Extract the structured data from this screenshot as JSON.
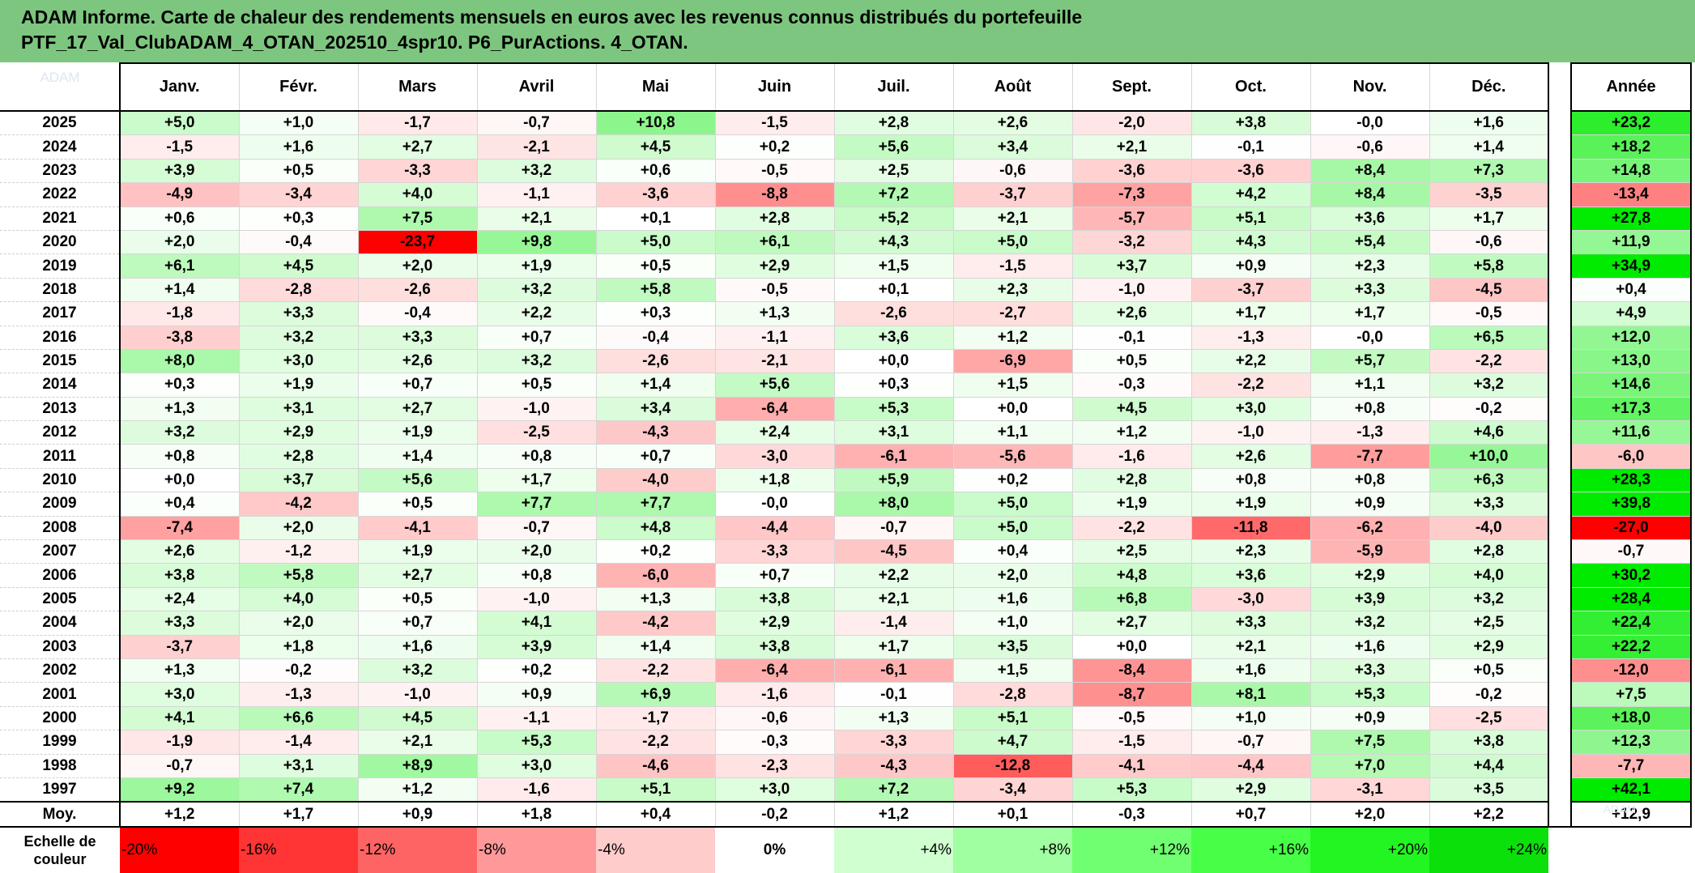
{
  "title_line1": "ADAM Informe. Carte de chaleur des rendements mensuels en euros avec les revenus connus distribués du portefeuille",
  "title_line2": "PTF_17_Val_ClubADAM_4_OTAN_202510_4spr10. P6_PurActions. 4_OTAN.",
  "colors": {
    "title_bg": "#7dc67f",
    "negative_max": "#ff0000",
    "positive_max": "#00ee00",
    "neutral": "#ffffff"
  },
  "chart_data": {
    "type": "heatmap",
    "columns": [
      "Janv.",
      "Févr.",
      "Mars",
      "Avril",
      "Mai",
      "Juin",
      "Juil.",
      "Août",
      "Sept.",
      "Oct.",
      "Nov.",
      "Déc."
    ],
    "year_column": "Année",
    "rows": [
      {
        "year": "2025",
        "values": [
          "+5,0",
          "+1,0",
          "-1,7",
          "-0,7",
          "+10,8",
          "-1,5",
          "+2,8",
          "+2,6",
          "-2,0",
          "+3,8",
          "-0,0",
          "+1,6"
        ],
        "annual": "+23,2"
      },
      {
        "year": "2024",
        "values": [
          "-1,5",
          "+1,6",
          "+2,7",
          "-2,1",
          "+4,5",
          "+0,2",
          "+5,6",
          "+3,4",
          "+2,1",
          "-0,1",
          "-0,6",
          "+1,4"
        ],
        "annual": "+18,2"
      },
      {
        "year": "2023",
        "values": [
          "+3,9",
          "+0,5",
          "-3,3",
          "+3,2",
          "+0,6",
          "-0,5",
          "+2,5",
          "-0,6",
          "-3,6",
          "-3,6",
          "+8,4",
          "+7,3"
        ],
        "annual": "+14,8"
      },
      {
        "year": "2022",
        "values": [
          "-4,9",
          "-3,4",
          "+4,0",
          "-1,1",
          "-3,6",
          "-8,8",
          "+7,2",
          "-3,7",
          "-7,3",
          "+4,2",
          "+8,4",
          "-3,5"
        ],
        "annual": "-13,4"
      },
      {
        "year": "2021",
        "values": [
          "+0,6",
          "+0,3",
          "+7,5",
          "+2,1",
          "+0,1",
          "+2,8",
          "+5,2",
          "+2,1",
          "-5,7",
          "+5,1",
          "+3,6",
          "+1,7"
        ],
        "annual": "+27,8"
      },
      {
        "year": "2020",
        "values": [
          "+2,0",
          "-0,4",
          "-23,7",
          "+9,8",
          "+5,0",
          "+6,1",
          "+4,3",
          "+5,0",
          "-3,2",
          "+4,3",
          "+5,4",
          "-0,6"
        ],
        "annual": "+11,9"
      },
      {
        "year": "2019",
        "values": [
          "+6,1",
          "+4,5",
          "+2,0",
          "+1,9",
          "+0,5",
          "+2,9",
          "+1,5",
          "-1,5",
          "+3,7",
          "+0,9",
          "+2,3",
          "+5,8"
        ],
        "annual": "+34,9"
      },
      {
        "year": "2018",
        "values": [
          "+1,4",
          "-2,8",
          "-2,6",
          "+3,2",
          "+5,8",
          "-0,5",
          "+0,1",
          "+2,3",
          "-1,0",
          "-3,7",
          "+3,3",
          "-4,5"
        ],
        "annual": "+0,4"
      },
      {
        "year": "2017",
        "values": [
          "-1,8",
          "+3,3",
          "-0,4",
          "+2,2",
          "+0,3",
          "+1,3",
          "-2,6",
          "-2,7",
          "+2,6",
          "+1,7",
          "+1,7",
          "-0,5"
        ],
        "annual": "+4,9"
      },
      {
        "year": "2016",
        "values": [
          "-3,8",
          "+3,2",
          "+3,3",
          "+0,7",
          "-0,4",
          "-1,1",
          "+3,6",
          "+1,2",
          "-0,1",
          "-1,3",
          "-0,0",
          "+6,5"
        ],
        "annual": "+12,0"
      },
      {
        "year": "2015",
        "values": [
          "+8,0",
          "+3,0",
          "+2,6",
          "+3,2",
          "-2,6",
          "-2,1",
          "+0,0",
          "-6,9",
          "+0,5",
          "+2,2",
          "+5,7",
          "-2,2"
        ],
        "annual": "+13,0"
      },
      {
        "year": "2014",
        "values": [
          "+0,3",
          "+1,9",
          "+0,7",
          "+0,5",
          "+1,4",
          "+5,6",
          "+0,3",
          "+1,5",
          "-0,3",
          "-2,2",
          "+1,1",
          "+3,2"
        ],
        "annual": "+14,6"
      },
      {
        "year": "2013",
        "values": [
          "+1,3",
          "+3,1",
          "+2,7",
          "-1,0",
          "+3,4",
          "-6,4",
          "+5,3",
          "+0,0",
          "+4,5",
          "+3,0",
          "+0,8",
          "-0,2"
        ],
        "annual": "+17,3"
      },
      {
        "year": "2012",
        "values": [
          "+3,2",
          "+2,9",
          "+1,9",
          "-2,5",
          "-4,3",
          "+2,4",
          "+3,1",
          "+1,1",
          "+1,2",
          "-1,0",
          "-1,3",
          "+4,6"
        ],
        "annual": "+11,6"
      },
      {
        "year": "2011",
        "values": [
          "+0,8",
          "+2,8",
          "+1,4",
          "+0,8",
          "+0,7",
          "-3,0",
          "-6,1",
          "-5,6",
          "-1,6",
          "+2,6",
          "-7,7",
          "+10,0"
        ],
        "annual": "-6,0"
      },
      {
        "year": "2010",
        "values": [
          "+0,0",
          "+3,7",
          "+5,6",
          "+1,7",
          "-4,0",
          "+1,8",
          "+5,9",
          "+0,2",
          "+2,8",
          "+0,8",
          "+0,8",
          "+6,3"
        ],
        "annual": "+28,3"
      },
      {
        "year": "2009",
        "values": [
          "+0,4",
          "-4,2",
          "+0,5",
          "+7,7",
          "+7,7",
          "-0,0",
          "+8,0",
          "+5,0",
          "+1,9",
          "+1,9",
          "+0,9",
          "+3,3"
        ],
        "annual": "+39,8"
      },
      {
        "year": "2008",
        "values": [
          "-7,4",
          "+2,0",
          "-4,1",
          "-0,7",
          "+4,8",
          "-4,4",
          "-0,7",
          "+5,0",
          "-2,2",
          "-11,8",
          "-6,2",
          "-4,0"
        ],
        "annual": "-27,0"
      },
      {
        "year": "2007",
        "values": [
          "+2,6",
          "-1,2",
          "+1,9",
          "+2,0",
          "+0,2",
          "-3,3",
          "-4,5",
          "+0,4",
          "+2,5",
          "+2,3",
          "-5,9",
          "+2,8"
        ],
        "annual": "-0,7"
      },
      {
        "year": "2006",
        "values": [
          "+3,8",
          "+5,8",
          "+2,7",
          "+0,8",
          "-6,0",
          "+0,7",
          "+2,2",
          "+2,0",
          "+4,8",
          "+3,6",
          "+2,9",
          "+4,0"
        ],
        "annual": "+30,2"
      },
      {
        "year": "2005",
        "values": [
          "+2,4",
          "+4,0",
          "+0,5",
          "-1,0",
          "+1,3",
          "+3,8",
          "+2,1",
          "+1,6",
          "+6,8",
          "-3,0",
          "+3,9",
          "+3,2"
        ],
        "annual": "+28,4"
      },
      {
        "year": "2004",
        "values": [
          "+3,3",
          "+2,0",
          "+0,7",
          "+4,1",
          "-4,2",
          "+2,9",
          "-1,4",
          "+1,0",
          "+2,7",
          "+3,3",
          "+3,2",
          "+2,5"
        ],
        "annual": "+22,4"
      },
      {
        "year": "2003",
        "values": [
          "-3,7",
          "+1,8",
          "+1,6",
          "+3,9",
          "+1,4",
          "+3,8",
          "+1,7",
          "+3,5",
          "+0,0",
          "+2,1",
          "+1,6",
          "+2,9"
        ],
        "annual": "+22,2"
      },
      {
        "year": "2002",
        "values": [
          "+1,3",
          "-0,2",
          "+3,2",
          "+0,2",
          "-2,2",
          "-6,4",
          "-6,1",
          "+1,5",
          "-8,4",
          "+1,6",
          "+3,3",
          "+0,5"
        ],
        "annual": "-12,0"
      },
      {
        "year": "2001",
        "values": [
          "+3,0",
          "-1,3",
          "-1,0",
          "+0,9",
          "+6,9",
          "-1,6",
          "-0,1",
          "-2,8",
          "-8,7",
          "+8,1",
          "+5,3",
          "-0,2"
        ],
        "annual": "+7,5"
      },
      {
        "year": "2000",
        "values": [
          "+4,1",
          "+6,6",
          "+4,5",
          "-1,1",
          "-1,7",
          "-0,6",
          "+1,3",
          "+5,1",
          "-0,5",
          "+1,0",
          "+0,9",
          "-2,5"
        ],
        "annual": "+18,0"
      },
      {
        "year": "1999",
        "values": [
          "-1,9",
          "-1,4",
          "+2,1",
          "+5,3",
          "-2,2",
          "-0,3",
          "-3,3",
          "+4,7",
          "-1,5",
          "-0,7",
          "+7,5",
          "+3,8"
        ],
        "annual": "+12,3"
      },
      {
        "year": "1998",
        "values": [
          "-0,7",
          "+3,1",
          "+8,9",
          "+3,0",
          "-4,6",
          "-2,3",
          "-4,3",
          "-12,8",
          "-4,1",
          "-4,4",
          "+7,0",
          "+4,4"
        ],
        "annual": "-7,7"
      },
      {
        "year": "1997",
        "values": [
          "+9,2",
          "+7,4",
          "+1,2",
          "-1,6",
          "+5,1",
          "+3,0",
          "+7,2",
          "-3,4",
          "+5,3",
          "+2,9",
          "-3,1",
          "+3,5"
        ],
        "annual": "+42,1"
      }
    ],
    "average": {
      "label": "Moy.",
      "values": [
        "+1,2",
        "+1,7",
        "+0,9",
        "+1,8",
        "+0,4",
        "-0,2",
        "+1,2",
        "+0,1",
        "-0,3",
        "+0,7",
        "+2,0",
        "+2,2"
      ],
      "annual": "+12,9"
    },
    "scale": {
      "label_line1": "Echelle de",
      "label_line2": "couleur",
      "steps": [
        {
          "label": "-20%",
          "color": "#ff0000",
          "align": "left"
        },
        {
          "label": "-16%",
          "color": "#ff3434",
          "align": "left"
        },
        {
          "label": "-12%",
          "color": "#ff6464",
          "align": "left"
        },
        {
          "label": "-8%",
          "color": "#ff9999",
          "align": "left"
        },
        {
          "label": "-4%",
          "color": "#ffcccc",
          "align": "left"
        },
        {
          "label": "0%",
          "color": "#ffffff",
          "align": "center"
        },
        {
          "label": "+4%",
          "color": "#d0ffd0",
          "align": "right"
        },
        {
          "label": "+8%",
          "color": "#a0ffa0",
          "align": "right"
        },
        {
          "label": "+12%",
          "color": "#70ff70",
          "align": "right"
        },
        {
          "label": "+16%",
          "color": "#48ff48",
          "align": "right"
        },
        {
          "label": "+20%",
          "color": "#22f522",
          "align": "right"
        },
        {
          "label": "+24%",
          "color": "#0be00b",
          "align": "right"
        }
      ]
    }
  }
}
